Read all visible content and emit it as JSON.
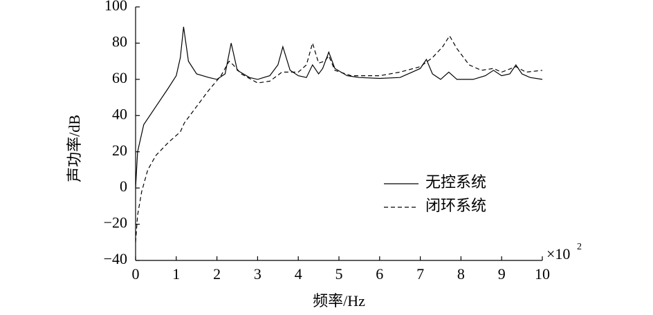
{
  "chart_data": {
    "type": "line",
    "xlabel": "频率/Hz",
    "ylabel": "声功率/dB",
    "x_multiplier": "×10",
    "x_multiplier_exp": "2",
    "xlim": [
      0,
      10
    ],
    "xticks": [
      0,
      1,
      2,
      3,
      4,
      5,
      6,
      7,
      8,
      9,
      10
    ],
    "ylim": [
      -40,
      100
    ],
    "yticks": [
      {
        "value": -40,
        "label": "−40"
      },
      {
        "value": -20,
        "label": "−20"
      },
      0,
      20,
      40,
      60,
      80,
      100
    ],
    "grid": false,
    "legend": "lower right",
    "series": [
      {
        "name": "无控系统",
        "color": "#000000",
        "line_style": "solid",
        "x": [
          0,
          0.05,
          0.2,
          0.5,
          0.8,
          1.0,
          1.1,
          1.18,
          1.3,
          1.5,
          1.8,
          2.0,
          2.2,
          2.35,
          2.5,
          2.8,
          3.0,
          3.3,
          3.5,
          3.62,
          3.8,
          4.0,
          4.2,
          4.35,
          4.5,
          4.6,
          4.75,
          4.9,
          5.2,
          5.5,
          6.0,
          6.5,
          6.8,
          7.0,
          7.15,
          7.3,
          7.5,
          7.7,
          7.9,
          8.3,
          8.6,
          8.8,
          9.0,
          9.2,
          9.35,
          9.5,
          9.7,
          10
        ],
        "values": [
          0,
          20,
          35,
          45,
          55,
          62,
          72,
          89,
          70,
          63,
          61,
          60,
          63,
          80,
          65,
          61,
          60,
          62,
          68,
          78,
          65,
          62,
          61,
          68,
          63,
          66,
          75,
          66,
          62,
          61,
          60.5,
          61,
          64,
          66,
          71,
          63,
          60,
          64,
          60,
          60,
          62,
          65,
          62,
          63,
          68,
          63,
          61,
          60
        ]
      },
      {
        "name": "闭环系统",
        "color": "#000000",
        "line_style": "dashed",
        "x": [
          0,
          0.05,
          0.15,
          0.3,
          0.5,
          0.8,
          1.1,
          1.2,
          1.5,
          1.8,
          2.1,
          2.3,
          2.4,
          2.6,
          3.0,
          3.3,
          3.6,
          4.0,
          4.2,
          4.35,
          4.5,
          4.65,
          4.75,
          4.9,
          5.3,
          6.0,
          6.5,
          7.0,
          7.3,
          7.55,
          7.72,
          7.9,
          8.2,
          8.5,
          8.8,
          9.0,
          9.35,
          9.6,
          10
        ],
        "values": [
          -30,
          -15,
          -2,
          10,
          18,
          25,
          31,
          36,
          45,
          54,
          62,
          70,
          68,
          63,
          58,
          59,
          64,
          64,
          68,
          80,
          69,
          70,
          73,
          65,
          62,
          62,
          64,
          67,
          72,
          78,
          84,
          77,
          68,
          65,
          66,
          64,
          67,
          64,
          65
        ]
      }
    ]
  }
}
